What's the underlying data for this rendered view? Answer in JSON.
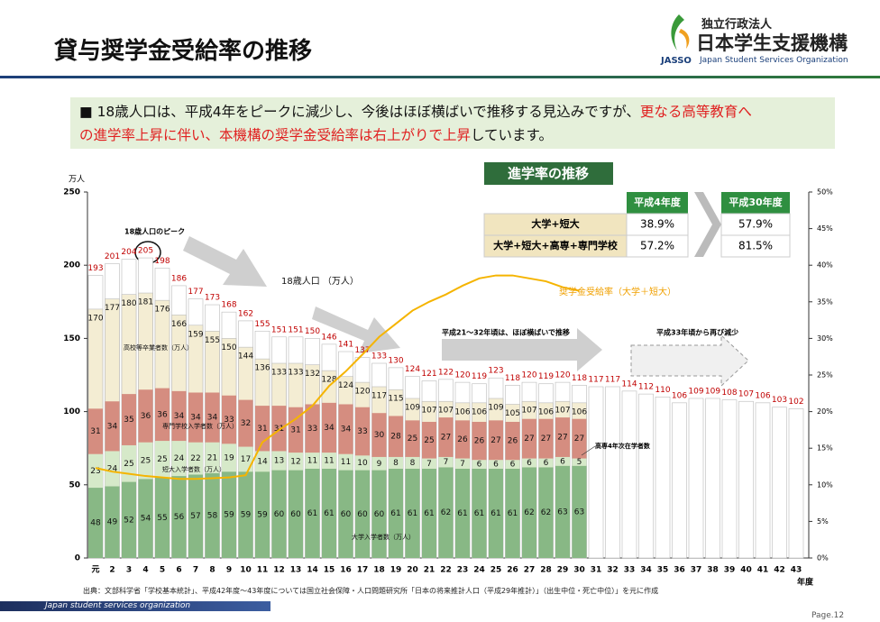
{
  "header": {
    "title": "貸与奨学金受給率の推移",
    "logo": [
      "独立行政法人",
      "日本学生支援機構",
      "JASSO",
      "Japan Student Services Organization"
    ]
  },
  "bullet": [
    [
      {
        "text": "■ 18歳人口は、平成4年をピークに減少し、今後はほぼ横ばいで推移する見込みですが、",
        "color": "#111111"
      },
      {
        "text": "更なる高等教育へ",
        "color": "#e02020"
      }
    ],
    [
      {
        "text": "の進学率上昇に伴い、本機構の奨学金受給率は右上がりで上昇",
        "color": "#e02020"
      },
      {
        "text": "しています。",
        "color": "#111111"
      }
    ]
  ],
  "table": {
    "title": "進学率の推移",
    "columns": [
      "平成4年度",
      "平成30年度"
    ],
    "rows": [
      [
        "大学+短大",
        "38.9%",
        "57.9%"
      ],
      [
        "大学+短大+高専+専門学校",
        "57.2%",
        "81.5%"
      ]
    ]
  },
  "chart_data": {
    "type": "bar",
    "y_unit": "万人",
    "x_unit": "年度",
    "categories": [
      "元",
      "2",
      "3",
      "4",
      "5",
      "6",
      "7",
      "8",
      "9",
      "10",
      "11",
      "12",
      "13",
      "14",
      "15",
      "16",
      "17",
      "18",
      "19",
      "20",
      "21",
      "22",
      "23",
      "24",
      "25",
      "26",
      "27",
      "28",
      "29",
      "30",
      "31",
      "32",
      "33",
      "34",
      "35",
      "36",
      "37",
      "38",
      "39",
      "40",
      "41",
      "42",
      "43"
    ],
    "ylim": [
      0,
      250
    ],
    "yticks": [
      0,
      50,
      100,
      150,
      200,
      250
    ],
    "y2lim": [
      0,
      50
    ],
    "y2ticks": [
      {
        "value": 0,
        "label": "0%"
      },
      {
        "value": 5,
        "label": "5%"
      },
      {
        "value": 10,
        "label": "10%"
      },
      {
        "value": 15,
        "label": "15%"
      },
      {
        "value": 20,
        "label": "20%"
      },
      {
        "value": 25,
        "label": "25%"
      },
      {
        "value": 30,
        "label": "30%"
      },
      {
        "value": 35,
        "label": "35%"
      },
      {
        "value": 40,
        "label": "40%"
      },
      {
        "value": 45,
        "label": "45%"
      },
      {
        "value": 50,
        "label": "50%"
      }
    ],
    "series": [
      {
        "name": "18歳人口 （万人）",
        "stacked": false,
        "color": "#ffffff",
        "label_color": "#c00000",
        "values": [
          193,
          201,
          204,
          205,
          198,
          186,
          177,
          173,
          168,
          162,
          155,
          151,
          151,
          150,
          146,
          141,
          137,
          133,
          130,
          124,
          121,
          122,
          120,
          119,
          123,
          118,
          120,
          119,
          120,
          118,
          117,
          117,
          114,
          112,
          110,
          106,
          109,
          109,
          108,
          107,
          106,
          103,
          102
        ]
      },
      {
        "name": "高校等卒業者数（万人）",
        "stacked": false,
        "color": "#f4edd3",
        "label_color": "#111111",
        "values": [
          170,
          177,
          180,
          181,
          176,
          166,
          159,
          155,
          150,
          144,
          136,
          133,
          133,
          132,
          128,
          124,
          120,
          117,
          115,
          109,
          107,
          107,
          106,
          106,
          109,
          105,
          107,
          106,
          107,
          106,
          null,
          null,
          null,
          null,
          null,
          null,
          null,
          null,
          null,
          null,
          null,
          null,
          null
        ]
      },
      {
        "name": "大学入学者数（万人）",
        "stacked": true,
        "color": "#88b885",
        "label_color": "#111111",
        "values": [
          48,
          49,
          52,
          54,
          55,
          56,
          57,
          58,
          59,
          59,
          59,
          60,
          60,
          61,
          61,
          60,
          60,
          60,
          61,
          61,
          61,
          62,
          61,
          61,
          61,
          61,
          62,
          62,
          63,
          63,
          null,
          null,
          null,
          null,
          null,
          null,
          null,
          null,
          null,
          null,
          null,
          null,
          null
        ]
      },
      {
        "name": "短大入学者数（万人）",
        "stacked": true,
        "color": "#d6e9c9",
        "label_color": "#111111",
        "values": [
          23,
          24,
          25,
          25,
          25,
          24,
          22,
          21,
          19,
          17,
          14,
          13,
          12,
          11,
          11,
          11,
          10,
          9,
          8,
          8,
          7,
          7,
          7,
          6,
          6,
          6,
          6,
          6,
          6,
          5,
          null,
          null,
          null,
          null,
          null,
          null,
          null,
          null,
          null,
          null,
          null,
          null,
          null
        ]
      },
      {
        "name": "専門学校入学者数（万人）",
        "stacked": true,
        "color": "#d58d80",
        "label_color": "#111111",
        "values": [
          31,
          34,
          35,
          36,
          36,
          34,
          34,
          34,
          33,
          32,
          31,
          31,
          31,
          33,
          34,
          34,
          33,
          30,
          28,
          25,
          25,
          27,
          26,
          26,
          27,
          26,
          27,
          27,
          27,
          27,
          null,
          null,
          null,
          null,
          null,
          null,
          null,
          null,
          null,
          null,
          null,
          null,
          null
        ]
      },
      {
        "name": "奨学金受給率（大学＋短大）",
        "type": "line",
        "axis": "y2",
        "color": "#f5b400",
        "values": [
          12.3,
          11.8,
          11.5,
          11.2,
          11.0,
          10.8,
          10.8,
          10.9,
          11.0,
          11.3,
          15.8,
          17.5,
          19.0,
          20.8,
          23.5,
          25.5,
          27.8,
          30.2,
          32.0,
          33.8,
          35.0,
          36.0,
          37.2,
          38.2,
          38.6,
          38.6,
          38.2,
          37.8,
          37.0,
          36.5,
          null,
          null,
          null,
          null,
          null,
          null,
          null,
          null,
          null,
          null,
          null,
          null,
          null
        ]
      }
    ],
    "annotations": [
      "18歳人口のピーク",
      "高専4年次在学者数",
      "平成21～32年頃は、ほぼ横ばいで推移",
      "平成33年頃から再び減少"
    ]
  },
  "footer": {
    "source": "出典：文部科学省「学校基本統計」、平成42年度～43年度については国立社会保障・人口問題研究所「日本の将来推計人口（平成29年推計）」（出生中位・死亡中位）」を元に作成",
    "org": "Japan student services organization",
    "page": "Page.12"
  }
}
